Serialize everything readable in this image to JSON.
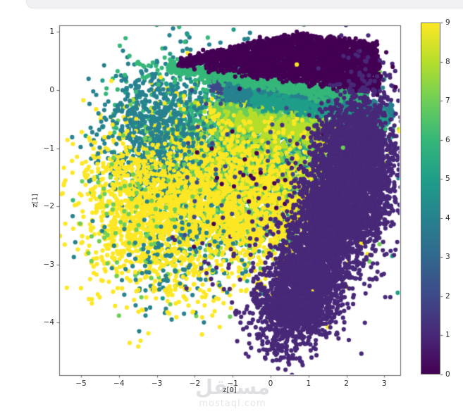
{
  "watermark": {
    "brand_arabic": "مستقل",
    "brand_domain": "mostaql.com"
  },
  "chart_data": {
    "type": "scatter",
    "title": "",
    "xlabel": "z[0]",
    "ylabel": "z[1]",
    "xlim": [
      -5.58,
      3.42
    ],
    "ylim": [
      -4.9,
      1.11
    ],
    "xticks": [
      -5,
      -4,
      -3,
      -2,
      -1,
      0,
      1,
      2,
      3
    ],
    "yticks": [
      1,
      0,
      -1,
      -2,
      -3,
      -4
    ],
    "grid": false,
    "legend_position": "none",
    "summary": "2-D latent space scatter (z[0] vs z[1]) of ~20k samples colored by class label 0-9 using the viridis colormap; dense class-0 wedge at top, class-1 mass at lower right, mixed classes 4-9 cloud at center-left.",
    "colorbar": {
      "colormap": "viridis",
      "ticks": [
        0,
        1,
        2,
        3,
        4,
        5,
        6,
        7,
        8,
        9
      ],
      "min": 0,
      "max": 9
    },
    "classes": [
      {
        "label": 0,
        "color": "#440154"
      },
      {
        "label": 1,
        "color": "#482878"
      },
      {
        "label": 2,
        "color": "#3e4989"
      },
      {
        "label": 3,
        "color": "#31688e"
      },
      {
        "label": 4,
        "color": "#26828e"
      },
      {
        "label": 5,
        "color": "#1f9e89"
      },
      {
        "label": 6,
        "color": "#35b779"
      },
      {
        "label": 7,
        "color": "#6ece58"
      },
      {
        "label": 8,
        "color": "#b5de2b"
      },
      {
        "label": 9,
        "color": "#fde725"
      }
    ],
    "marker": {
      "radius_px": 3.1
    },
    "clusters": [
      {
        "class": 4,
        "shape": "blob",
        "cx": -1.0,
        "cy": -0.9,
        "sx": 1.55,
        "sy": 0.75,
        "n": 1300
      },
      {
        "class": 5,
        "shape": "blob",
        "cx": -0.35,
        "cy": -1.25,
        "sx": 1.45,
        "sy": 0.8,
        "n": 1100
      },
      {
        "class": 3,
        "shape": "band",
        "x1": -1.4,
        "y1": -0.16,
        "x2": 3.25,
        "y2": -0.42,
        "sigma": 5,
        "n": 550
      },
      {
        "class": 6,
        "shape": "blob",
        "cx": -1.35,
        "cy": -1.05,
        "sx": 1.35,
        "sy": 0.7,
        "n": 800
      },
      {
        "class": 7,
        "shape": "blob",
        "cx": -0.5,
        "cy": -1.55,
        "sx": 1.35,
        "sy": 0.7,
        "n": 900
      },
      {
        "class": 7,
        "shape": "band",
        "x1": -1.55,
        "y1": -0.35,
        "x2": 2.1,
        "y2": -0.65,
        "sigma": 6,
        "n": 650
      },
      {
        "class": 8,
        "shape": "blob",
        "cx": 0.15,
        "cy": -1.15,
        "sx": 1.25,
        "sy": 0.65,
        "n": 650
      },
      {
        "class": 8,
        "shape": "band",
        "x1": -0.9,
        "y1": -0.5,
        "x2": 1.9,
        "y2": -0.85,
        "sigma": 6,
        "n": 350
      },
      {
        "class": 9,
        "shape": "blob",
        "cx": -1.55,
        "cy": -1.8,
        "sx": 1.5,
        "sy": 0.75,
        "n": 1500
      },
      {
        "class": 9,
        "shape": "blob",
        "cx": -0.3,
        "cy": -2.2,
        "sx": 1.0,
        "sy": 0.6,
        "n": 500
      },
      {
        "class": 4,
        "shape": "blob",
        "cx": -3.25,
        "cy": -0.95,
        "sx": 0.7,
        "sy": 0.5,
        "n": 400
      },
      {
        "class": 9,
        "shape": "blob",
        "cx": -3.3,
        "cy": -1.95,
        "sx": 0.8,
        "sy": 0.6,
        "n": 650
      },
      {
        "class": 9,
        "shape": "blob",
        "cx": -3.7,
        "cy": -2.3,
        "sx": 0.95,
        "sy": 0.75,
        "n": 220
      },
      {
        "class": 7,
        "shape": "blob",
        "cx": -3.4,
        "cy": -2.1,
        "sx": 0.85,
        "sy": 0.75,
        "n": 90
      },
      {
        "class": 4,
        "shape": "blob",
        "cx": -2.7,
        "cy": -2.9,
        "sx": 0.85,
        "sy": 0.5,
        "n": 130
      },
      {
        "class": 9,
        "shape": "blob",
        "cx": -2.4,
        "cy": -3.2,
        "sx": 0.75,
        "sy": 0.45,
        "n": 90
      },
      {
        "class": 4,
        "shape": "blob",
        "cx": -2.9,
        "cy": -0.35,
        "sx": 0.6,
        "sy": 0.4,
        "n": 160
      },
      {
        "class": 6,
        "shape": "blob",
        "cx": -3.1,
        "cy": 0.32,
        "sx": 0.5,
        "sy": 0.12,
        "n": 22
      },
      {
        "class": 2,
        "shape": "band",
        "x1": -1.55,
        "y1": 0.1,
        "x2": 2.2,
        "y2": -0.14,
        "sigma": 6,
        "n": 600
      },
      {
        "class": 4,
        "shape": "band",
        "x1": -1.2,
        "y1": 0.0,
        "x2": 3.18,
        "y2": -0.4,
        "sigma": 7,
        "n": 900
      },
      {
        "class": 5,
        "shape": "band",
        "x1": -0.5,
        "y1": -0.15,
        "x2": 3.1,
        "y2": -0.5,
        "sigma": 6,
        "n": 450
      },
      {
        "class": 6,
        "shape": "band",
        "x1": -2.7,
        "y1": 0.42,
        "x2": 2.55,
        "y2": -0.14,
        "sigma": 5.5,
        "n": 900
      },
      {
        "class": 2,
        "shape": "blob",
        "cx": -0.7,
        "cy": -1.3,
        "sx": 1.2,
        "sy": 0.7,
        "n": 45
      },
      {
        "class": 0,
        "shape": "blob",
        "cx": -0.6,
        "cy": -1.6,
        "sx": 1.0,
        "sy": 0.6,
        "n": 25
      },
      {
        "class": 0,
        "shape": "quad",
        "pts": [
          [
            -2.45,
            0.51
          ],
          [
            0.67,
            0.97
          ],
          [
            2.77,
            0.8
          ],
          [
            2.9,
            0.0
          ]
        ],
        "jitter": 2.5,
        "n": 2600
      },
      {
        "class": 0,
        "shape": "band",
        "x1": -2.45,
        "y1": 0.45,
        "x2": 2.85,
        "y2": -0.02,
        "sigma": 3,
        "n": 180
      },
      {
        "class": 1,
        "shape": "band",
        "x1": 2.35,
        "y1": -0.7,
        "x2": 0.62,
        "y2": -4.05,
        "sigma": 26,
        "n": 4600
      },
      {
        "class": 1,
        "shape": "blob",
        "cx": 2.42,
        "cy": -1.35,
        "sx": 0.45,
        "sy": 0.7,
        "n": 1700
      },
      {
        "class": 1,
        "shape": "blob",
        "cx": 0.35,
        "cy": -3.95,
        "sx": 0.45,
        "sy": 0.4,
        "n": 500
      },
      {
        "class": 1,
        "shape": "blob",
        "cx": -0.6,
        "cy": -2.9,
        "sx": 0.75,
        "sy": 0.65,
        "n": 70
      },
      {
        "class": 1,
        "shape": "blob",
        "cx": 2.1,
        "cy": -0.5,
        "sx": 0.45,
        "sy": 0.18,
        "n": 90
      }
    ],
    "outliers": [
      {
        "class": 9,
        "x": 0.69,
        "y": 0.44
      },
      {
        "class": 9,
        "x": -2.9,
        "y": 0.22
      },
      {
        "class": 9,
        "x": -1.05,
        "y": -3.75
      },
      {
        "class": 9,
        "x": -1.0,
        "y": -2.5
      },
      {
        "class": 0,
        "x": 3.05,
        "y": 0.65
      },
      {
        "class": 0,
        "x": 3.22,
        "y": 0.4
      },
      {
        "class": 0,
        "x": 3.3,
        "y": 0.05
      },
      {
        "class": 0,
        "x": -1.5,
        "y": -2.3
      },
      {
        "class": 2,
        "x": -2.2,
        "y": -1.5
      },
      {
        "class": 7,
        "x": 1.91,
        "y": -0.99
      },
      {
        "class": 6,
        "x": 3.03,
        "y": -0.67
      },
      {
        "class": 4,
        "x": 2.96,
        "y": 0.04
      }
    ]
  }
}
